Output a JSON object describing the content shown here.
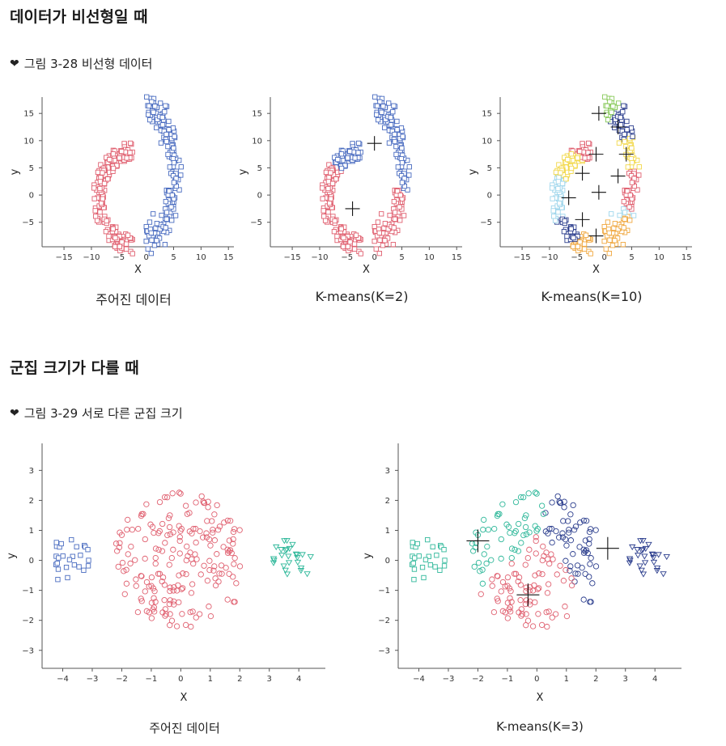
{
  "sections": [
    {
      "title": "데이터가 비선형일 때",
      "caption": "그림 3-28 비선형 데이터"
    },
    {
      "title": "군집 크기가 다를 때",
      "caption": "그림 3-29 서로 다른 군집 크기"
    }
  ],
  "colors": {
    "red": "#e06070",
    "blue": "#4a6cc0",
    "teal": "#2fb89a",
    "green": "#88c95a",
    "yellow": "#f2d84a",
    "lightblue": "#9fd6ec",
    "navy": "#2d3f8e",
    "orange": "#f0a840",
    "steel": "#6f9ed8",
    "axis": "#555555"
  },
  "chart_data": [
    {
      "type": "scatter",
      "title": "주어진 데이터",
      "xlabel": "X",
      "ylabel": "y",
      "xlim": [
        -19,
        16
      ],
      "ylim": [
        -9.5,
        18
      ],
      "xticks": [
        -15,
        -10,
        -5,
        0,
        5,
        10,
        15
      ],
      "yticks": [
        -5,
        0,
        5,
        10,
        15
      ],
      "marker": "square",
      "series": [
        {
          "color": "red",
          "shape": "moon-lower"
        },
        {
          "color": "blue",
          "shape": "moon-upper"
        }
      ]
    },
    {
      "type": "scatter",
      "title": "K-means(K=2)",
      "xlabel": "X",
      "ylabel": "y",
      "xlim": [
        -19,
        16
      ],
      "ylim": [
        -9.5,
        18
      ],
      "xticks": [
        -15,
        -10,
        -5,
        0,
        5,
        10,
        15
      ],
      "yticks": [
        -5,
        0,
        5,
        10,
        15
      ],
      "marker": "square",
      "centroids": [
        [
          0,
          9.5
        ],
        [
          -4,
          -2.5
        ]
      ]
    },
    {
      "type": "scatter",
      "title": "K-means(K=10)",
      "xlabel": "X",
      "ylabel": "y",
      "xlim": [
        -19,
        16
      ],
      "ylim": [
        -9.5,
        18
      ],
      "xticks": [
        -15,
        -10,
        -5,
        0,
        5,
        10,
        15
      ],
      "yticks": [
        -5,
        0,
        5,
        10,
        15
      ],
      "marker": "square",
      "centroids": [
        [
          -1,
          15
        ],
        [
          2.5,
          12.5
        ],
        [
          -1.5,
          7.5
        ],
        [
          4,
          7.5
        ],
        [
          -4,
          4
        ],
        [
          2.5,
          3.5
        ],
        [
          -1,
          0.5
        ],
        [
          -6.5,
          -0.5
        ],
        [
          -4,
          -4.5
        ],
        [
          -1.5,
          -7.5
        ]
      ]
    },
    {
      "type": "scatter",
      "title": "주어진 데이터",
      "xlabel": "X",
      "ylabel": "y",
      "xlim": [
        -4.7,
        4.9
      ],
      "ylim": [
        -3.6,
        3.9
      ],
      "xticks": [
        -4,
        -3,
        -2,
        -1,
        0,
        1,
        2,
        3,
        4
      ],
      "yticks": [
        -3,
        -2,
        -1,
        0,
        1,
        2,
        3
      ],
      "series": [
        {
          "color": "blue",
          "marker": "square",
          "center": [
            -3.8,
            0
          ],
          "radius": 0.75
        },
        {
          "color": "red",
          "marker": "circle",
          "center": [
            0,
            0
          ],
          "radius": 2.3
        },
        {
          "color": "teal",
          "marker": "triangle",
          "center": [
            3.8,
            0
          ],
          "radius": 0.75
        }
      ]
    },
    {
      "type": "scatter",
      "title": "K-means(K=3)",
      "xlabel": "X",
      "ylabel": "y",
      "xlim": [
        -4.7,
        4.9
      ],
      "ylim": [
        -3.6,
        3.9
      ],
      "xticks": [
        -4,
        -3,
        -2,
        -1,
        0,
        1,
        2,
        3,
        4
      ],
      "yticks": [
        -3,
        -2,
        -1,
        0,
        1,
        2,
        3
      ],
      "centroids": [
        [
          -2,
          0.65
        ],
        [
          -0.3,
          -1.15
        ],
        [
          2.4,
          0.4
        ]
      ]
    }
  ]
}
